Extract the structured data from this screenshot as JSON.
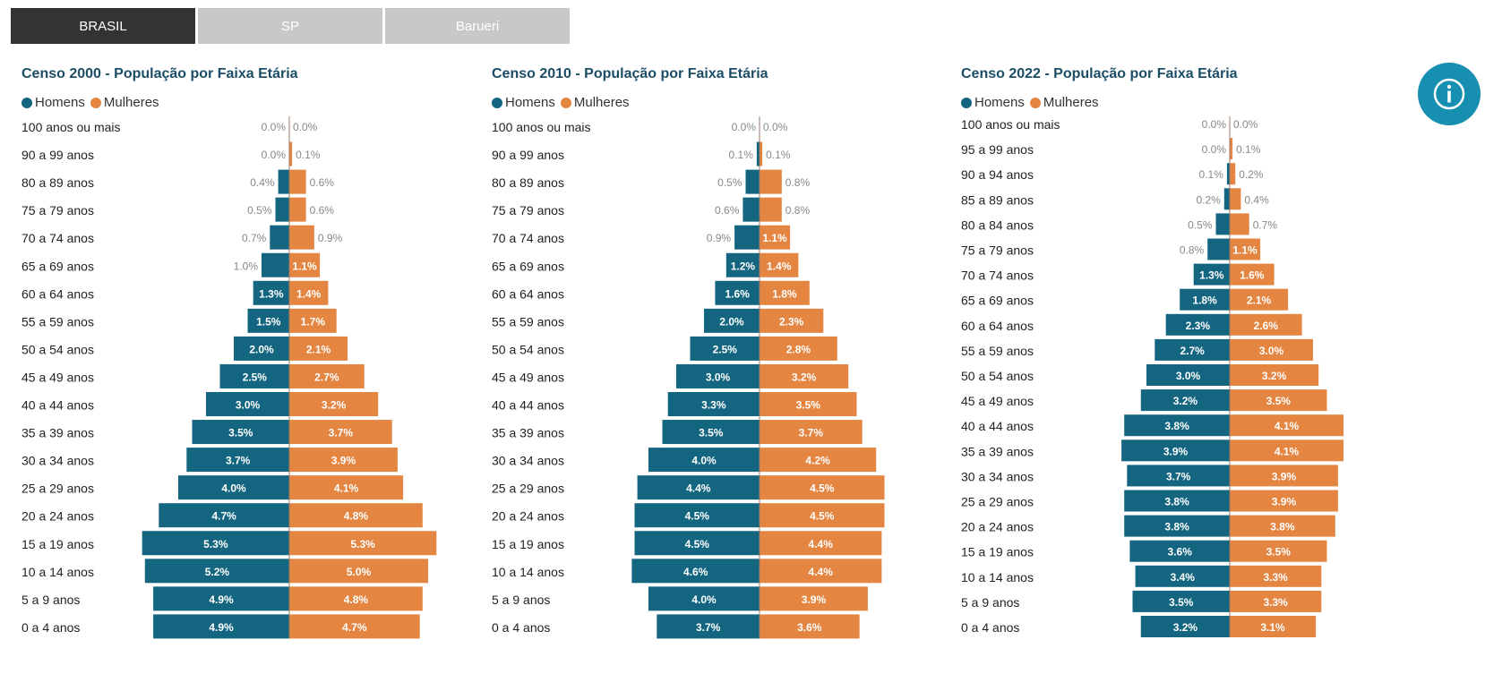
{
  "tabs": [
    {
      "label": "BRASIL",
      "active": true
    },
    {
      "label": "SP",
      "active": false
    },
    {
      "label": "Barueri",
      "active": false
    }
  ],
  "info_button": {
    "icon": "info-icon"
  },
  "colors": {
    "homens": "#146680",
    "mulheres": "#e48642",
    "tab_active": "#333333",
    "tab_inactive": "#c8c8c8",
    "info": "#168fb0"
  },
  "legend": {
    "homens": "Homens",
    "mulheres": "Mulheres"
  },
  "chart_data": [
    {
      "type": "bar",
      "title": "Censo 2000 - População por Faixa Etária",
      "orientation": "horizontal-diverging",
      "categories": [
        "100 anos ou mais",
        "90 a 99 anos",
        "80 a 89 anos",
        "75 a 79 anos",
        "70 a 74 anos",
        "65 a 69 anos",
        "60 a 64 anos",
        "55 a 59 anos",
        "50 a 54 anos",
        "45 a 49 anos",
        "40 a 44 anos",
        "35 a 39 anos",
        "30 a 34 anos",
        "25 a 29 anos",
        "20 a 24 anos",
        "15 a 19 anos",
        "10 a 14 anos",
        "5 a 9 anos",
        "0 a 4 anos"
      ],
      "series": [
        {
          "name": "Homens",
          "values": [
            0.0,
            0.0,
            0.4,
            0.5,
            0.7,
            1.0,
            1.3,
            1.5,
            2.0,
            2.5,
            3.0,
            3.5,
            3.7,
            4.0,
            4.7,
            5.3,
            5.2,
            4.9,
            4.9
          ]
        },
        {
          "name": "Mulheres",
          "values": [
            0.0,
            0.1,
            0.6,
            0.6,
            0.9,
            1.1,
            1.4,
            1.7,
            2.1,
            2.7,
            3.2,
            3.7,
            3.9,
            4.1,
            4.8,
            5.3,
            5.0,
            4.8,
            4.7
          ]
        }
      ]
    },
    {
      "type": "bar",
      "title": "Censo 2010 - População por Faixa Etária",
      "orientation": "horizontal-diverging",
      "categories": [
        "100 anos ou mais",
        "90 a 99 anos",
        "80 a 89 anos",
        "75 a 79 anos",
        "70 a 74 anos",
        "65 a 69 anos",
        "60 a 64 anos",
        "55 a 59 anos",
        "50 a 54 anos",
        "45 a 49 anos",
        "40 a 44 anos",
        "35 a 39 anos",
        "30 a 34 anos",
        "25 a 29 anos",
        "20 a 24 anos",
        "15 a 19 anos",
        "10 a 14 anos",
        "5 a 9 anos",
        "0 a 4 anos"
      ],
      "series": [
        {
          "name": "Homens",
          "values": [
            0.0,
            0.1,
            0.5,
            0.6,
            0.9,
            1.2,
            1.6,
            2.0,
            2.5,
            3.0,
            3.3,
            3.5,
            4.0,
            4.4,
            4.5,
            4.5,
            4.6,
            4.0,
            3.7
          ]
        },
        {
          "name": "Mulheres",
          "values": [
            0.0,
            0.1,
            0.8,
            0.8,
            1.1,
            1.4,
            1.8,
            2.3,
            2.8,
            3.2,
            3.5,
            3.7,
            4.2,
            4.5,
            4.5,
            4.4,
            4.4,
            3.9,
            3.6
          ]
        }
      ]
    },
    {
      "type": "bar",
      "title": "Censo 2022 - População por Faixa Etária",
      "orientation": "horizontal-diverging",
      "categories": [
        "100 anos ou mais",
        "95 a 99 anos",
        "90 a 94 anos",
        "85 a 89 anos",
        "80 a 84 anos",
        "75 a 79 anos",
        "70 a 74 anos",
        "65 a 69 anos",
        "60 a 64 anos",
        "55 a 59 anos",
        "50 a 54 anos",
        "45 a 49 anos",
        "40 a 44 anos",
        "35 a 39 anos",
        "30 a 34 anos",
        "25 a 29 anos",
        "20 a 24 anos",
        "15 a 19 anos",
        "10 a 14 anos",
        "5 a 9 anos",
        "0 a 4 anos"
      ],
      "series": [
        {
          "name": "Homens",
          "values": [
            0.0,
            0.0,
            0.1,
            0.2,
            0.5,
            0.8,
            1.3,
            1.8,
            2.3,
            2.7,
            3.0,
            3.2,
            3.8,
            3.9,
            3.7,
            3.8,
            3.8,
            3.6,
            3.4,
            3.5,
            3.2
          ]
        },
        {
          "name": "Mulheres",
          "values": [
            0.0,
            0.1,
            0.2,
            0.4,
            0.7,
            1.1,
            1.6,
            2.1,
            2.6,
            3.0,
            3.2,
            3.5,
            4.1,
            4.1,
            3.9,
            3.9,
            3.8,
            3.5,
            3.3,
            3.3,
            3.1
          ]
        }
      ]
    }
  ]
}
